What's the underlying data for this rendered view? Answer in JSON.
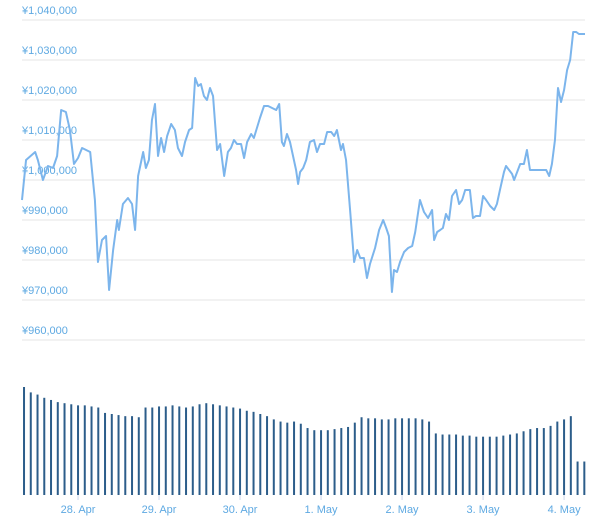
{
  "chart_data": [
    {
      "type": "line",
      "color": "#7cb5ec",
      "grid": true,
      "xlim": [
        -16.6,
        150.2
      ],
      "ylim": [
        960000,
        1040000
      ],
      "yticks": [
        {
          "value": 960000,
          "label": "¥960,000"
        },
        {
          "value": 970000,
          "label": "¥970,000"
        },
        {
          "value": 980000,
          "label": "¥980,000"
        },
        {
          "value": 990000,
          "label": "¥990,000"
        },
        {
          "value": 1000000,
          "label": "¥1,000,000"
        },
        {
          "value": 1010000,
          "label": "¥1,010,000"
        },
        {
          "value": 1020000,
          "label": "¥1,020,000"
        },
        {
          "value": 1030000,
          "label": "¥1,030,000"
        },
        {
          "value": 1040000,
          "label": "¥1,040,000"
        }
      ],
      "x": [
        -16.6,
        -15.4,
        -12.7,
        -11.9,
        -10.4,
        -8.9,
        -7.4,
        -6.2,
        -5.0,
        -3.6,
        -2.4,
        -1.2,
        0,
        1.2,
        2.4,
        3.6,
        5.0,
        5.9,
        7.1,
        8.3,
        9.2,
        10.4,
        11.6,
        12.1,
        13.3,
        14.8,
        16.0,
        16.9,
        17.8,
        19.3,
        20.1,
        21.0,
        21.9,
        22.8,
        23.7,
        24.6,
        25.5,
        26.4,
        27.6,
        28.7,
        29.6,
        30.8,
        31.7,
        32.9,
        33.8,
        34.7,
        35.6,
        36.4,
        37.3,
        38.2,
        39.1,
        40.0,
        41.2,
        42.1,
        43.3,
        44.4,
        45.3,
        46.2,
        47.1,
        48.3,
        49.2,
        50.1,
        51.3,
        52.1,
        53.0,
        53.9,
        55.1,
        56.3,
        57.5,
        58.7,
        59.6,
        60.4,
        61.0,
        61.9,
        62.8,
        63.7,
        64.6,
        65.2,
        65.8,
        66.7,
        67.6,
        68.7,
        69.9,
        70.8,
        71.7,
        72.9,
        73.8,
        75.0,
        75.9,
        76.7,
        77.9,
        78.5,
        79.4,
        80.6,
        81.8,
        82.7,
        83.6,
        84.7,
        85.6,
        86.5,
        88.0,
        89.2,
        90.4,
        91.3,
        92.1,
        93.0,
        93.6,
        94.5,
        95.4,
        96.6,
        97.8,
        99.0,
        99.9,
        101.3,
        102.5,
        103.7,
        104.9,
        105.5,
        106.4,
        107.3,
        108.1,
        109.0,
        109.9,
        110.8,
        112.0,
        112.9,
        113.8,
        114.7,
        116.1,
        117.0,
        117.9,
        119.1,
        120.0,
        120.9,
        122.1,
        123.3,
        124.1,
        125.0,
        126.2,
        126.8,
        127.7,
        128.6,
        129.2,
        130.1,
        131.0,
        132.1,
        133.0,
        133.9,
        134.8,
        136.9,
        138.7,
        139.6,
        140.4,
        141.3,
        142.2,
        143.1,
        144.0,
        144.9,
        145.8,
        146.7,
        147.6,
        148.4,
        150.2
      ],
      "values": [
        995000,
        1005000,
        1007000,
        1005000,
        1000000,
        1003500,
        1003000,
        1006000,
        1017500,
        1017000,
        1012500,
        1004000,
        1005500,
        1008000,
        1007500,
        1007000,
        995000,
        979500,
        985000,
        986000,
        972500,
        982500,
        990000,
        987500,
        994000,
        995500,
        994000,
        987500,
        1001000,
        1007000,
        1003000,
        1005000,
        1015000,
        1019000,
        1006000,
        1010500,
        1007000,
        1011000,
        1014000,
        1012500,
        1008000,
        1006000,
        1009500,
        1012500,
        1013000,
        1025500,
        1023500,
        1024000,
        1021000,
        1020000,
        1023000,
        1021000,
        1007500,
        1009000,
        1001000,
        1007000,
        1008000,
        1010000,
        1009000,
        1009000,
        1005500,
        1009500,
        1011500,
        1010500,
        1013000,
        1015500,
        1018500,
        1018500,
        1018000,
        1017500,
        1019000,
        1009500,
        1008500,
        1011500,
        1009500,
        1006000,
        1002500,
        999000,
        1002000,
        1003000,
        1005000,
        1009500,
        1010000,
        1007000,
        1009000,
        1009000,
        1012000,
        1012000,
        1011000,
        1012500,
        1007500,
        1009000,
        1005000,
        992500,
        979500,
        982500,
        980500,
        980500,
        975500,
        979000,
        983000,
        987500,
        990000,
        988000,
        986000,
        972000,
        977500,
        977000,
        979500,
        982000,
        983000,
        983500,
        987000,
        995000,
        992000,
        990500,
        992500,
        985000,
        987000,
        987500,
        988000,
        991500,
        990000,
        996000,
        997500,
        994000,
        995000,
        997500,
        997500,
        990500,
        991000,
        991000,
        996000,
        995000,
        993500,
        992500,
        994000,
        997500,
        1002000,
        1003500,
        1002500,
        1001500,
        1000000,
        1002000,
        1004000,
        1004000,
        1007500,
        1002500,
        1002500,
        1002500,
        1002500,
        1001000,
        1004000,
        1010000,
        1023000,
        1019500,
        1022500,
        1027500,
        1030000,
        1037000,
        1037000,
        1036500,
        1036500
      ]
    },
    {
      "type": "bar",
      "color": "#2c5d8a",
      "xlim": [
        -16.6,
        150.2
      ],
      "ylim": [
        0,
        100
      ],
      "xticks": [
        {
          "value": 0,
          "label": "28. Apr"
        },
        {
          "value": 24,
          "label": "29. Apr"
        },
        {
          "value": 48,
          "label": "30. Apr"
        },
        {
          "value": 72,
          "label": "1. May"
        },
        {
          "value": 96,
          "label": "2. May"
        },
        {
          "value": 120,
          "label": "3. May"
        },
        {
          "value": 144,
          "label": "4. May"
        }
      ],
      "x": [
        -16,
        -14,
        -12,
        -10,
        -8,
        -6,
        -4,
        -2,
        0,
        2,
        4,
        6,
        8,
        10,
        12,
        14,
        16,
        18,
        20,
        22,
        24,
        26,
        28,
        30,
        32,
        34,
        36,
        38,
        40,
        42,
        44,
        46,
        48,
        50,
        52,
        54,
        56,
        58,
        60,
        62,
        64,
        66,
        68,
        70,
        72,
        74,
        76,
        78,
        80,
        82,
        84,
        86,
        88,
        90,
        92,
        94,
        96,
        98,
        100,
        102,
        104,
        106,
        108,
        110,
        112,
        114,
        116,
        118,
        120,
        122,
        124,
        126,
        128,
        130,
        132,
        134,
        136,
        138,
        140,
        142,
        144,
        146,
        148,
        150
      ],
      "values": [
        100,
        95,
        93,
        90,
        88,
        86,
        85,
        84,
        83,
        83,
        82,
        81,
        76,
        75,
        74,
        73,
        73,
        72,
        81,
        81,
        82,
        82,
        83,
        82,
        81,
        82,
        84,
        85,
        84,
        83,
        82,
        81,
        80,
        78,
        77,
        75,
        73,
        70,
        68,
        67,
        68,
        66,
        62,
        60,
        60,
        60,
        61,
        62,
        63,
        67,
        72,
        71,
        71,
        70,
        70,
        71,
        71,
        71,
        71,
        70,
        68,
        57,
        56,
        56,
        56,
        55,
        55,
        54,
        54,
        54,
        54,
        55,
        56,
        57,
        59,
        61,
        62,
        62,
        64,
        68,
        70,
        73,
        31,
        31
      ]
    }
  ]
}
